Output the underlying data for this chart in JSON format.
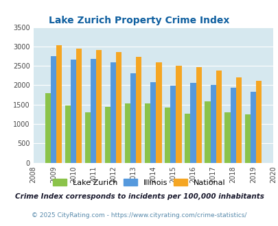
{
  "title": "Lake Zurich Property Crime Index",
  "years": [
    2008,
    2009,
    2010,
    2011,
    2012,
    2013,
    2014,
    2015,
    2016,
    2017,
    2018,
    2019,
    2020
  ],
  "lake_zurich": [
    null,
    1800,
    1470,
    1300,
    1450,
    1530,
    1530,
    1430,
    1270,
    1580,
    1300,
    1240,
    null
  ],
  "illinois": [
    null,
    2750,
    2670,
    2680,
    2600,
    2300,
    2070,
    1990,
    2060,
    2010,
    1940,
    1840,
    null
  ],
  "national": [
    null,
    3030,
    2950,
    2910,
    2860,
    2730,
    2600,
    2500,
    2470,
    2380,
    2210,
    2110,
    null
  ],
  "lake_zurich_color": "#8BC34A",
  "illinois_color": "#5599DD",
  "national_color": "#F5A623",
  "bg_color": "#D6E8EF",
  "ylim": [
    0,
    3500
  ],
  "yticks": [
    0,
    500,
    1000,
    1500,
    2000,
    2500,
    3000,
    3500
  ],
  "legend_labels": [
    "Lake Zurich",
    "Illinois",
    "National"
  ],
  "footnote1": "Crime Index corresponds to incidents per 100,000 inhabitants",
  "footnote2": "© 2025 CityRating.com - https://www.cityrating.com/crime-statistics/",
  "title_color": "#1060A0",
  "footnote1_color": "#1a1a2e",
  "footnote2_color": "#5588AA"
}
